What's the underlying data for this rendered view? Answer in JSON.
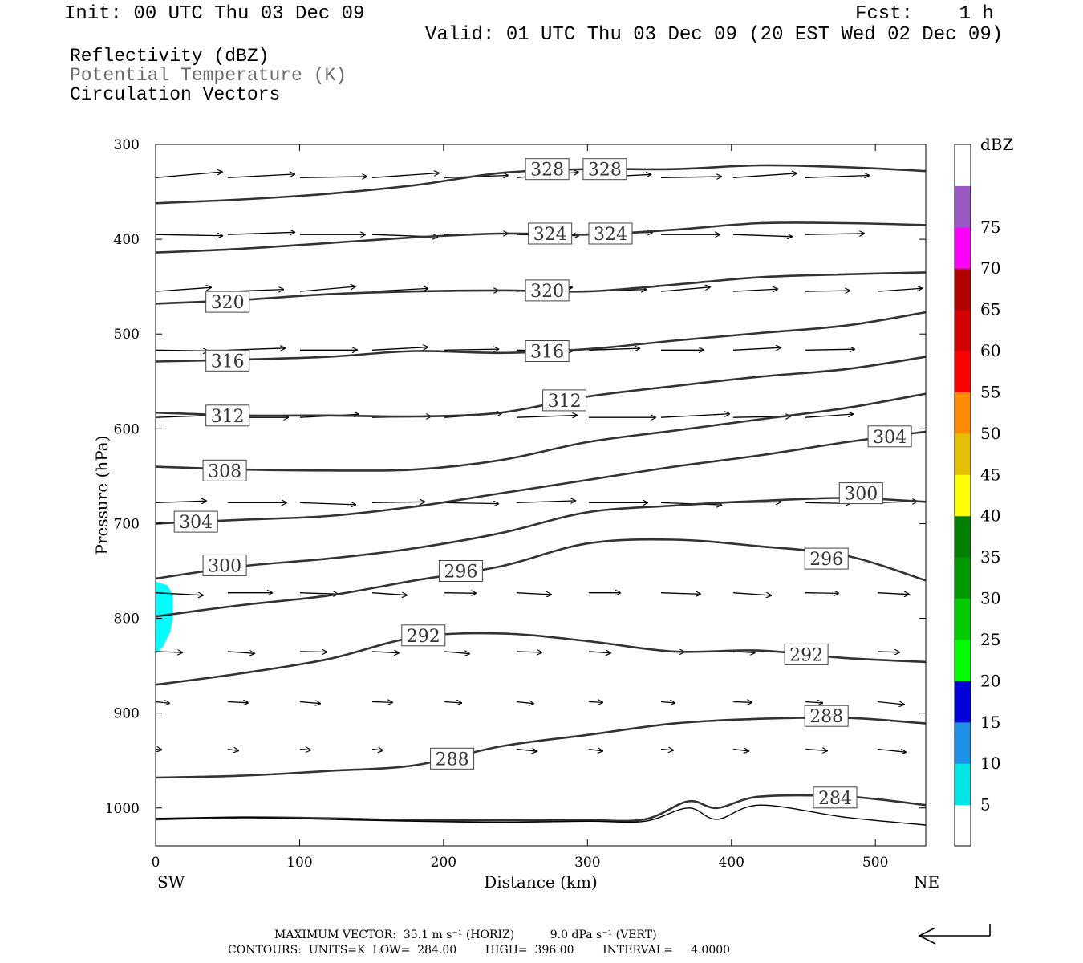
{
  "header": {
    "init": "Init: 00 UTC Thu 03 Dec 09",
    "fcst": "Fcst:    1 h",
    "valid": "Valid: 01 UTC Thu 03 Dec 09 (20 EST Wed 02 Dec 09)"
  },
  "fields": [
    {
      "label": "Reflectivity (dBZ)",
      "color": "#000000"
    },
    {
      "label": "Potential Temperature (K)",
      "color": "#6b6b6b"
    },
    {
      "label": "Circulation Vectors",
      "color": "#000000"
    }
  ],
  "footer": {
    "max_vector": "MAXIMUM VECTOR:  35.1 m s⁻¹ (HORIZ)          9.0 dPa s⁻¹ (VERT)",
    "contours": "CONTOURS:  UNITS=K  LOW=  284.00        HIGH=  396.00        INTERVAL=     4.0000"
  },
  "colorbar": {
    "title": "dBZ",
    "labels": [
      "5",
      "10",
      "15",
      "20",
      "25",
      "30",
      "35",
      "40",
      "45",
      "50",
      "55",
      "60",
      "65",
      "70",
      "75"
    ],
    "colors": [
      "#ffffff",
      "#00e5e5",
      "#1e90e6",
      "#0000d8",
      "#00ff00",
      "#00cc00",
      "#009900",
      "#008000",
      "#ffff00",
      "#e6c000",
      "#ff8c00",
      "#ff0000",
      "#d50000",
      "#b00000",
      "#ff00ff",
      "#9b59c6",
      "#ffffff"
    ]
  },
  "chart_data": {
    "type": "cross-section",
    "xlabel": "Distance (km)",
    "ylabel": "Pressure (hPa)",
    "xlim": [
      0,
      535
    ],
    "ylim": [
      1040,
      300
    ],
    "x_ticks": [
      "0",
      "100",
      "200",
      "300",
      "400",
      "500"
    ],
    "x_tick_values": [
      0,
      100,
      200,
      300,
      400,
      500
    ],
    "y_ticks": [
      "300",
      "400",
      "500",
      "600",
      "700",
      "800",
      "900",
      "1000"
    ],
    "y_tick_values": [
      300,
      400,
      500,
      600,
      700,
      800,
      900,
      1000
    ],
    "left_end": "SW",
    "right_end": "NE",
    "reflectivity": {
      "color": "#00ffff",
      "outline": [
        [
          0,
          761
        ],
        [
          8,
          765
        ],
        [
          12,
          775
        ],
        [
          12,
          800
        ],
        [
          10,
          815
        ],
        [
          5,
          830
        ],
        [
          0,
          838
        ]
      ]
    },
    "contours": [
      {
        "value": 328,
        "labels": [
          "328",
          "328"
        ],
        "label_at": [
          [
            272,
            326
          ],
          [
            312,
            326
          ]
        ],
        "points": [
          [
            0,
            362
          ],
          [
            60,
            358
          ],
          [
            120,
            352
          ],
          [
            180,
            343
          ],
          [
            240,
            330
          ],
          [
            300,
            326
          ],
          [
            360,
            326
          ],
          [
            420,
            322
          ],
          [
            480,
            324
          ],
          [
            535,
            328
          ]
        ]
      },
      {
        "value": 324,
        "labels": [
          "324",
          "324"
        ],
        "label_at": [
          [
            274,
            394
          ],
          [
            316,
            394
          ]
        ],
        "points": [
          [
            0,
            414
          ],
          [
            60,
            410
          ],
          [
            120,
            404
          ],
          [
            180,
            398
          ],
          [
            240,
            394
          ],
          [
            300,
            395
          ],
          [
            360,
            390
          ],
          [
            420,
            383
          ],
          [
            480,
            383
          ],
          [
            535,
            385
          ]
        ]
      },
      {
        "value": 320,
        "labels": [
          "320",
          "320"
        ],
        "label_at": [
          [
            50,
            466
          ],
          [
            272,
            454
          ]
        ],
        "points": [
          [
            0,
            468
          ],
          [
            60,
            464
          ],
          [
            120,
            458
          ],
          [
            180,
            455
          ],
          [
            240,
            454
          ],
          [
            300,
            455
          ],
          [
            360,
            448
          ],
          [
            420,
            440
          ],
          [
            480,
            437
          ],
          [
            535,
            435
          ]
        ]
      },
      {
        "value": 316,
        "labels": [
          "316",
          "316"
        ],
        "label_at": [
          [
            50,
            528
          ],
          [
            272,
            518
          ]
        ],
        "points": [
          [
            0,
            529
          ],
          [
            60,
            527
          ],
          [
            120,
            524
          ],
          [
            180,
            518
          ],
          [
            240,
            520
          ],
          [
            300,
            516
          ],
          [
            360,
            507
          ],
          [
            420,
            499
          ],
          [
            480,
            491
          ],
          [
            535,
            477
          ]
        ]
      },
      {
        "value": 312,
        "labels": [
          "312",
          "312"
        ],
        "label_at": [
          [
            50,
            586
          ],
          [
            284,
            570
          ]
        ],
        "points": [
          [
            0,
            583
          ],
          [
            60,
            586
          ],
          [
            120,
            586
          ],
          [
            180,
            587
          ],
          [
            240,
            583
          ],
          [
            300,
            566
          ],
          [
            360,
            555
          ],
          [
            420,
            545
          ],
          [
            480,
            537
          ],
          [
            535,
            524
          ]
        ]
      },
      {
        "value": 308,
        "labels": [
          "308"
        ],
        "label_at": [
          [
            48,
            644
          ]
        ],
        "points": [
          [
            0,
            640
          ],
          [
            60,
            643
          ],
          [
            120,
            644
          ],
          [
            180,
            643
          ],
          [
            240,
            633
          ],
          [
            300,
            614
          ],
          [
            360,
            602
          ],
          [
            420,
            590
          ],
          [
            480,
            578
          ],
          [
            535,
            563
          ]
        ]
      },
      {
        "value": 304,
        "labels": [
          "304",
          "304"
        ],
        "label_at": [
          [
            28,
            698
          ],
          [
            510,
            608
          ]
        ],
        "points": [
          [
            0,
            700
          ],
          [
            60,
            696
          ],
          [
            120,
            692
          ],
          [
            180,
            682
          ],
          [
            240,
            668
          ],
          [
            300,
            654
          ],
          [
            360,
            640
          ],
          [
            420,
            628
          ],
          [
            480,
            614
          ],
          [
            535,
            603
          ]
        ]
      },
      {
        "value": 300,
        "labels": [
          "300",
          "300"
        ],
        "label_at": [
          [
            48,
            744
          ],
          [
            490,
            668
          ]
        ],
        "points": [
          [
            0,
            758
          ],
          [
            60,
            745
          ],
          [
            120,
            737
          ],
          [
            180,
            726
          ],
          [
            240,
            710
          ],
          [
            300,
            688
          ],
          [
            360,
            681
          ],
          [
            420,
            676
          ],
          [
            480,
            673
          ],
          [
            535,
            677
          ]
        ]
      },
      {
        "value": 296,
        "labels": [
          "296",
          "296"
        ],
        "label_at": [
          [
            212,
            750
          ],
          [
            466,
            737
          ]
        ],
        "points": [
          [
            0,
            798
          ],
          [
            60,
            786
          ],
          [
            120,
            776
          ],
          [
            180,
            760
          ],
          [
            240,
            745
          ],
          [
            300,
            721
          ],
          [
            360,
            717
          ],
          [
            420,
            724
          ],
          [
            480,
            734
          ],
          [
            535,
            760
          ]
        ]
      },
      {
        "value": 292,
        "labels": [
          "292",
          "292"
        ],
        "label_at": [
          [
            186,
            818
          ],
          [
            452,
            838
          ]
        ],
        "points": [
          [
            0,
            870
          ],
          [
            60,
            858
          ],
          [
            120,
            843
          ],
          [
            180,
            820
          ],
          [
            240,
            816
          ],
          [
            300,
            824
          ],
          [
            360,
            835
          ],
          [
            420,
            834
          ],
          [
            480,
            842
          ],
          [
            535,
            846
          ]
        ]
      },
      {
        "value": 288,
        "labels": [
          "288",
          "288"
        ],
        "label_at": [
          [
            206,
            948
          ],
          [
            466,
            903
          ]
        ],
        "points": [
          [
            0,
            968
          ],
          [
            60,
            966
          ],
          [
            120,
            961
          ],
          [
            180,
            955
          ],
          [
            240,
            935
          ],
          [
            300,
            923
          ],
          [
            360,
            911
          ],
          [
            420,
            906
          ],
          [
            480,
            905
          ],
          [
            535,
            911
          ]
        ]
      },
      {
        "value": 284,
        "labels": [
          "284"
        ],
        "label_at": [
          [
            472,
            989
          ]
        ],
        "points": [
          [
            0,
            1012
          ],
          [
            60,
            1010
          ],
          [
            120,
            1011
          ],
          [
            180,
            1013
          ],
          [
            240,
            1013
          ],
          [
            300,
            1013
          ],
          [
            340,
            1012
          ],
          [
            370,
            993
          ],
          [
            390,
            1000
          ],
          [
            420,
            988
          ],
          [
            480,
            988
          ],
          [
            535,
            997
          ]
        ]
      }
    ],
    "surface": [
      [
        0,
        1011
      ],
      [
        60,
        1010
      ],
      [
        120,
        1012
      ],
      [
        180,
        1014
      ],
      [
        240,
        1015
      ],
      [
        300,
        1014
      ],
      [
        340,
        1014
      ],
      [
        370,
        1000
      ],
      [
        390,
        1012
      ],
      [
        420,
        997
      ],
      [
        480,
        1010
      ],
      [
        535,
        1018
      ]
    ]
  }
}
